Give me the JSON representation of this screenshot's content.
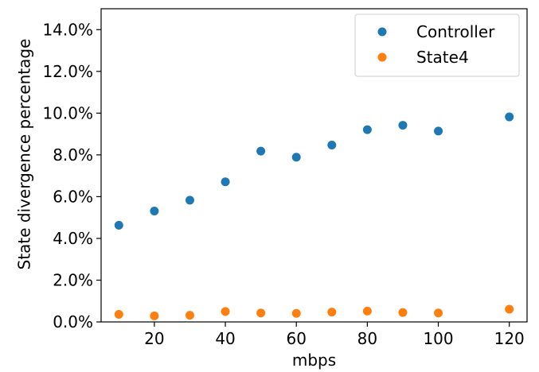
{
  "chart_data": {
    "type": "scatter",
    "xlabel": "mbps",
    "ylabel": "State divergence percentage",
    "xlim": [
      5,
      125
    ],
    "ylim": [
      0,
      0.15
    ],
    "xticks": [
      20,
      40,
      60,
      80,
      100,
      120
    ],
    "yticks": [
      0.0,
      0.02,
      0.04,
      0.06,
      0.08,
      0.1,
      0.12,
      0.14
    ],
    "ytick_labels": [
      "0.0%",
      "2.0%",
      "4.0%",
      "6.0%",
      "8.0%",
      "10.0%",
      "12.0%",
      "14.0%"
    ],
    "xtick_labels": [
      "20",
      "40",
      "60",
      "80",
      "100",
      "120"
    ],
    "grid": false,
    "legend_position": "top-right",
    "series": [
      {
        "name": "Controller",
        "color": "#1f77b4",
        "points": [
          [
            10,
            0.0463
          ],
          [
            20,
            0.0531
          ],
          [
            30,
            0.0583
          ],
          [
            40,
            0.0671
          ],
          [
            50,
            0.0818
          ],
          [
            60,
            0.0789
          ],
          [
            70,
            0.0847
          ],
          [
            80,
            0.0921
          ],
          [
            90,
            0.0942
          ],
          [
            100,
            0.0914
          ],
          [
            120,
            0.0982
          ]
        ]
      },
      {
        "name": "State4",
        "color": "#ff7f0e",
        "points": [
          [
            10,
            0.0036
          ],
          [
            20,
            0.0029
          ],
          [
            30,
            0.0032
          ],
          [
            40,
            0.005
          ],
          [
            50,
            0.0043
          ],
          [
            60,
            0.0041
          ],
          [
            70,
            0.0047
          ],
          [
            80,
            0.0052
          ],
          [
            90,
            0.0045
          ],
          [
            100,
            0.0043
          ],
          [
            120,
            0.0061
          ]
        ]
      }
    ]
  }
}
